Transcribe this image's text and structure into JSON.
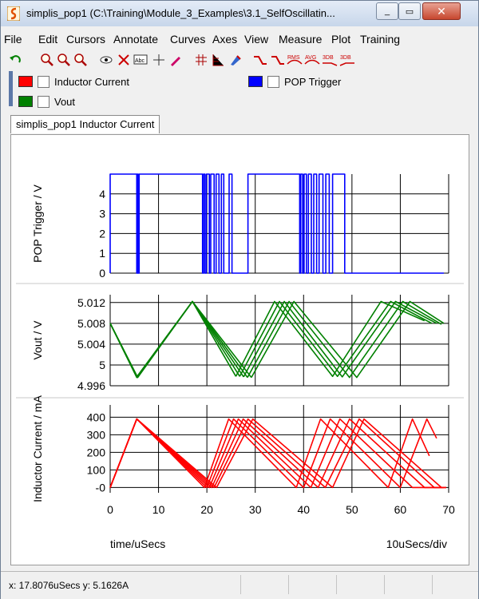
{
  "window": {
    "title": "simplis_pop1 (C:\\Training\\Module_3_Examples\\3.1_SelfOscillatin...",
    "minimize_label": "_",
    "maximize_label": "▭",
    "close_label": "✕"
  },
  "menu": [
    "File",
    "Edit",
    "Cursors",
    "Annotate",
    "Curves",
    "Axes",
    "View",
    "Measure",
    "Plot",
    "Training"
  ],
  "toolbar_icons": [
    "undo-arrow-icon",
    "zoom-in-icon",
    "zoom-out-icon",
    "zoom-fit-icon",
    "eye-icon",
    "delete-curve-icon",
    "label-icon",
    "cursor-icon",
    "edit-icon",
    "grid-icon",
    "axis-icon",
    "paint-icon",
    "rise-measure-icon",
    "fall-measure-icon",
    "rms-icon",
    "avg-icon",
    "3db-low-icon",
    "3db-high-icon"
  ],
  "toolbar_labels": {
    "rms": "RMS",
    "avg": "AVG",
    "db1": "3DB",
    "db2": "3DB"
  },
  "legend": [
    {
      "label": "Inductor Current",
      "color": "#ff0000"
    },
    {
      "label": "POP Trigger",
      "color": "#0000ff"
    },
    {
      "label": "Vout",
      "color": "#008000"
    }
  ],
  "tab_label": "simplis_pop1 Inductor Current",
  "status": {
    "text": "x: 17.8076uSecs   y: 5.1626A"
  },
  "chart_data": [
    {
      "type": "line",
      "ylabel": "POP Trigger / V",
      "ylim": [
        0,
        5
      ],
      "yticks": [
        0,
        1,
        2,
        3,
        4
      ],
      "color": "#0000ff",
      "series": [
        {
          "name": "POP Trigger",
          "x": [
            0,
            0,
            5.5,
            5.5,
            5.6,
            5.6,
            5.8,
            5.8,
            6.0,
            6.0,
            19.1,
            19.1,
            19.3,
            19.3,
            19.6,
            19.6,
            19.9,
            19.9,
            20.5,
            20.5,
            20.8,
            20.8,
            21.5,
            21.5,
            21.9,
            21.9,
            22.5,
            22.5,
            23.0,
            23.0,
            23.5,
            23.5,
            24.6,
            24.6,
            25.2,
            25.2,
            28.5,
            28.5,
            39.2,
            39.2,
            39.4,
            39.4,
            39.8,
            39.8,
            40.1,
            40.1,
            40.6,
            40.6,
            41.0,
            41.0,
            41.6,
            41.6,
            42.1,
            42.1,
            42.7,
            42.7,
            43.2,
            43.2,
            44.0,
            44.0,
            44.6,
            44.6,
            45.3,
            45.3,
            46.0,
            46.0,
            48.5,
            48.5,
            69.0
          ],
          "y": [
            0,
            5,
            5,
            0,
            0,
            5,
            5,
            0,
            0,
            5,
            5,
            0,
            0,
            5,
            5,
            0,
            0,
            5,
            5,
            0,
            0,
            5,
            5,
            0,
            0,
            5,
            5,
            0,
            0,
            5,
            5,
            0,
            0,
            5,
            5,
            0,
            0,
            5,
            5,
            0,
            0,
            5,
            5,
            0,
            0,
            5,
            5,
            0,
            0,
            5,
            5,
            0,
            0,
            5,
            5,
            0,
            0,
            5,
            5,
            0,
            0,
            5,
            5,
            0,
            0,
            5,
            5,
            0,
            0
          ]
        }
      ]
    },
    {
      "type": "line",
      "ylabel": "Vout / V",
      "ylim": [
        4.996,
        5.0135
      ],
      "yticks": [
        4.996,
        5,
        5.004,
        5.008,
        5.012
      ],
      "ytick_labels": [
        "4.996",
        "5",
        "5.004",
        "5.008",
        "5.012"
      ],
      "color": "#008000",
      "series": [
        {
          "name": "Vout",
          "x": [
            0,
            5.5,
            17,
            26
          ],
          "y": [
            5.008,
            4.9976,
            5.0122,
            4.9978
          ]
        },
        {
          "name": "Vout",
          "x": [
            0,
            5.5,
            17,
            26.8
          ],
          "y": [
            5.008,
            4.9977,
            5.0122,
            4.9978
          ]
        },
        {
          "name": "Vout",
          "x": [
            0,
            5.6,
            17,
            27.6
          ],
          "y": [
            5.008,
            4.9977,
            5.0122,
            4.9977
          ]
        },
        {
          "name": "Vout",
          "x": [
            0,
            5.6,
            17,
            28.4
          ],
          "y": [
            5.008,
            4.9976,
            5.0122,
            4.9976
          ]
        },
        {
          "name": "Vout",
          "x": [
            0,
            5.7,
            17,
            29.2
          ],
          "y": [
            5.008,
            4.9976,
            5.0122,
            4.9976
          ]
        },
        {
          "name": "Vout",
          "x": [
            26,
            34,
            46,
            56,
            65
          ],
          "y": [
            4.9978,
            5.0122,
            4.9978,
            5.0122,
            5.0085
          ]
        },
        {
          "name": "Vout",
          "x": [
            26.8,
            35,
            47,
            58,
            66.5
          ],
          "y": [
            4.9978,
            5.0122,
            4.9978,
            5.0122,
            5.008
          ]
        },
        {
          "name": "Vout",
          "x": [
            27.6,
            36,
            48,
            59,
            67.5
          ],
          "y": [
            4.9977,
            5.0122,
            4.9977,
            5.0122,
            5.008
          ]
        },
        {
          "name": "Vout",
          "x": [
            28.4,
            37,
            49.5,
            60.5,
            68.5
          ],
          "y": [
            4.9976,
            5.0122,
            4.9976,
            5.0122,
            5.0078
          ]
        },
        {
          "name": "Vout",
          "x": [
            29.2,
            38,
            51,
            62,
            69
          ],
          "y": [
            4.9976,
            5.0122,
            4.9976,
            5.0122,
            5.008
          ]
        }
      ]
    },
    {
      "type": "line",
      "ylabel": "Inductor Current / mA",
      "ylim": [
        -30,
        470
      ],
      "yticks": [
        0,
        100,
        200,
        300,
        400
      ],
      "ytick_labels": [
        "-0",
        "100",
        "200",
        "300",
        "400"
      ],
      "xlim": [
        0,
        70
      ],
      "xticks": [
        0,
        10,
        20,
        30,
        40,
        50,
        60,
        70
      ],
      "xlabel": "time/uSecs",
      "xdiv_label": "10uSecs/div",
      "color": "#ff0000",
      "series": [
        {
          "name": "Inductor Current",
          "x": [
            0,
            5.5,
            19.5,
            24.5,
            38.5,
            43.5,
            57.5,
            62.5,
            66
          ],
          "y": [
            0,
            390,
            0,
            390,
            0,
            390,
            0,
            390,
            180
          ]
        },
        {
          "name": "Inductor Current",
          "x": [
            0,
            5.5,
            20,
            25.5,
            40,
            45.5,
            60,
            65.5,
            67.5
          ],
          "y": [
            0,
            390,
            0,
            390,
            0,
            390,
            0,
            390,
            280
          ]
        },
        {
          "name": "Inductor Current",
          "x": [
            0,
            5.5,
            20.5,
            26.5,
            41.5,
            47.5,
            62.5,
            68.5
          ],
          "y": [
            0,
            390,
            0,
            390,
            0,
            390,
            0,
            0
          ]
        },
        {
          "name": "Inductor Current",
          "x": [
            0,
            5.5,
            21,
            27.5,
            43,
            49.5,
            65,
            69
          ],
          "y": [
            0,
            390,
            0,
            390,
            0,
            390,
            0,
            0
          ]
        },
        {
          "name": "Inductor Current",
          "x": [
            0,
            5.5,
            21.5,
            28.5,
            44.5,
            51.5,
            67,
            69.5
          ],
          "y": [
            0,
            390,
            0,
            390,
            0,
            390,
            0,
            0
          ]
        },
        {
          "name": "Inductor Current",
          "x": [
            0,
            5.5,
            22,
            29.5,
            46,
            52.5,
            68.5,
            69.5
          ],
          "y": [
            0,
            390,
            0,
            390,
            0,
            390,
            0,
            0
          ]
        }
      ]
    }
  ]
}
